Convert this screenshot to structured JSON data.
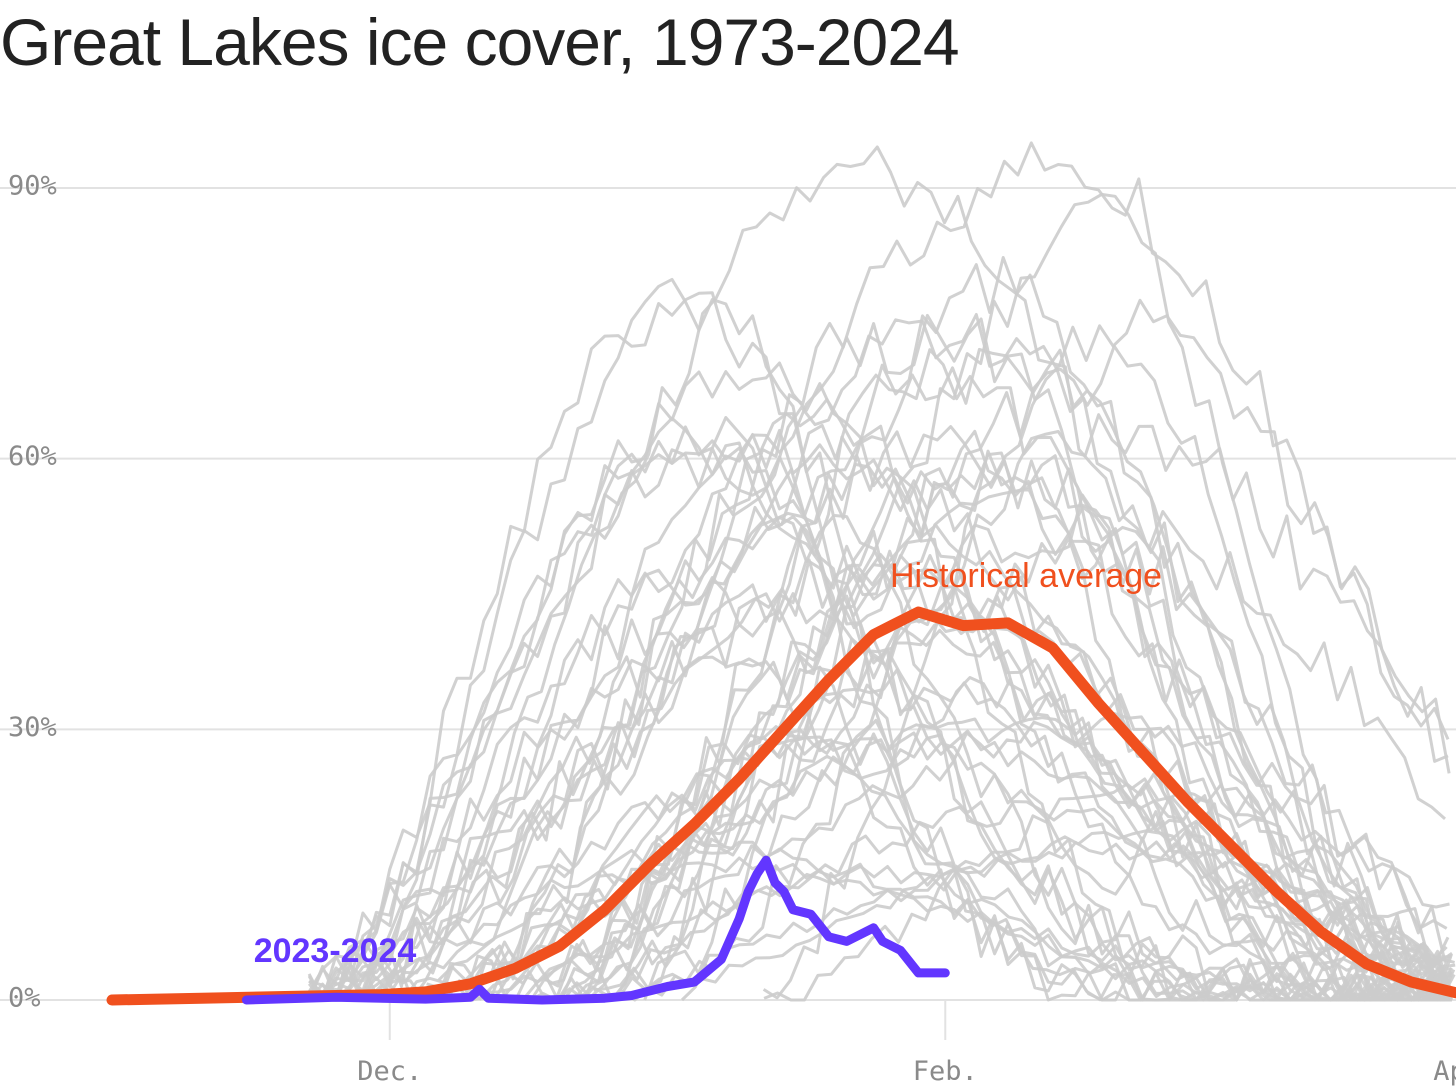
{
  "title": "Great Lakes ice cover, 1973-2024",
  "chart_data": {
    "type": "line",
    "title": "Great Lakes ice cover, 1973-2024",
    "xlabel": "",
    "ylabel": "",
    "x_unit": "days after Oct. 31",
    "xlim": [
      0,
      150
    ],
    "ylim": [
      0,
      95
    ],
    "y_ticks": [
      {
        "value": 0,
        "label": "0%"
      },
      {
        "value": 30,
        "label": "30%"
      },
      {
        "value": 60,
        "label": "60%"
      },
      {
        "value": 90,
        "label": "90%"
      }
    ],
    "x_ticks": [
      {
        "value": 31,
        "label": "Dec."
      },
      {
        "value": 93,
        "label": "Feb."
      },
      {
        "value": 152,
        "label": "April"
      }
    ],
    "grid": true,
    "colors": {
      "historical": "#f0501e",
      "current": "#6236ff",
      "background_years": "#cccccc",
      "grid": "#e2e2e2",
      "title": "#222222"
    },
    "annotations": [
      {
        "text": "Historical average",
        "series": "Historical average",
        "color": "#f0501e"
      },
      {
        "text": "2023-2024",
        "series": "2023-2024",
        "color": "#6236ff"
      }
    ],
    "series": [
      {
        "name": "Historical average",
        "color": "#f0501e",
        "x": [
          0,
          10,
          20,
          25,
          30,
          35,
          40,
          45,
          50,
          55,
          60,
          65,
          70,
          75,
          80,
          85,
          90,
          95,
          100,
          105,
          110,
          115,
          120,
          125,
          130,
          135,
          140,
          145,
          150
        ],
        "y": [
          0,
          0.2,
          0.4,
          0.5,
          0.6,
          0.9,
          1.8,
          3.5,
          6,
          10,
          15,
          19.5,
          24.5,
          30,
          35.5,
          40.5,
          43,
          41.5,
          41.8,
          39,
          33,
          27.5,
          22,
          17,
          12,
          7.5,
          4,
          2,
          0.8
        ]
      },
      {
        "name": "2023-2024",
        "color": "#6236ff",
        "x": [
          15,
          25,
          35,
          40,
          41,
          42,
          48,
          55,
          58,
          62,
          65,
          68,
          70,
          71,
          72,
          73,
          74,
          75,
          76,
          78,
          80,
          82,
          85,
          86,
          88,
          90,
          91,
          93
        ],
        "y": [
          0,
          0.3,
          0.1,
          0.3,
          1.2,
          0.2,
          0,
          0.2,
          0.5,
          1.5,
          2,
          4.5,
          9,
          12,
          14,
          15.5,
          13,
          12,
          10,
          9.5,
          7,
          6.5,
          8,
          6.5,
          5.5,
          3,
          3,
          3
        ]
      }
    ],
    "background_series_count": 50
  }
}
